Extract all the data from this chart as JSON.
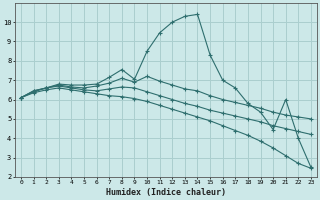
{
  "xlabel": "Humidex (Indice chaleur)",
  "bg_color": "#cce8e8",
  "grid_color": "#aacece",
  "line_color": "#2e6e6e",
  "xlim": [
    -0.5,
    23.5
  ],
  "ylim": [
    2,
    11
  ],
  "yticks": [
    2,
    3,
    4,
    5,
    6,
    7,
    8,
    9,
    10
  ],
  "xticks": [
    0,
    1,
    2,
    3,
    4,
    5,
    6,
    7,
    8,
    9,
    10,
    11,
    12,
    13,
    14,
    15,
    16,
    17,
    18,
    19,
    20,
    21,
    22,
    23
  ],
  "lines": [
    {
      "x": [
        0,
        1,
        2,
        3,
        4,
        5,
        6,
        7,
        8,
        9,
        10,
        11,
        12,
        13,
        14,
        15,
        16,
        17,
        18,
        19,
        20,
        21,
        22,
        23
      ],
      "y": [
        6.1,
        6.45,
        6.6,
        6.8,
        6.75,
        6.75,
        6.8,
        7.15,
        7.55,
        7.05,
        8.5,
        9.45,
        10.0,
        10.3,
        10.4,
        8.3,
        7.0,
        6.6,
        5.8,
        5.35,
        4.45,
        6.0,
        4.0,
        2.5
      ]
    },
    {
      "x": [
        0,
        1,
        2,
        3,
        4,
        5,
        6,
        7,
        8,
        9,
        10,
        11,
        12,
        13,
        14,
        15,
        16,
        17,
        18,
        19,
        20,
        21,
        22,
        23
      ],
      "y": [
        6.1,
        6.45,
        6.6,
        6.75,
        6.65,
        6.6,
        6.7,
        6.85,
        7.1,
        6.9,
        7.2,
        6.95,
        6.75,
        6.55,
        6.45,
        6.2,
        6.0,
        5.85,
        5.7,
        5.55,
        5.35,
        5.2,
        5.1,
        5.0
      ]
    },
    {
      "x": [
        0,
        1,
        2,
        3,
        4,
        5,
        6,
        7,
        8,
        9,
        10,
        11,
        12,
        13,
        14,
        15,
        16,
        17,
        18,
        19,
        20,
        21,
        22,
        23
      ],
      "y": [
        6.1,
        6.4,
        6.6,
        6.7,
        6.6,
        6.5,
        6.45,
        6.55,
        6.65,
        6.6,
        6.4,
        6.2,
        6.0,
        5.8,
        5.65,
        5.45,
        5.3,
        5.15,
        5.0,
        4.85,
        4.65,
        4.5,
        4.35,
        4.2
      ]
    },
    {
      "x": [
        0,
        1,
        2,
        3,
        4,
        5,
        6,
        7,
        8,
        9,
        10,
        11,
        12,
        13,
        14,
        15,
        16,
        17,
        18,
        19,
        20,
        21,
        22,
        23
      ],
      "y": [
        6.1,
        6.35,
        6.5,
        6.6,
        6.5,
        6.4,
        6.3,
        6.2,
        6.15,
        6.05,
        5.9,
        5.7,
        5.5,
        5.3,
        5.1,
        4.9,
        4.65,
        4.4,
        4.15,
        3.85,
        3.5,
        3.1,
        2.7,
        2.45
      ]
    }
  ]
}
